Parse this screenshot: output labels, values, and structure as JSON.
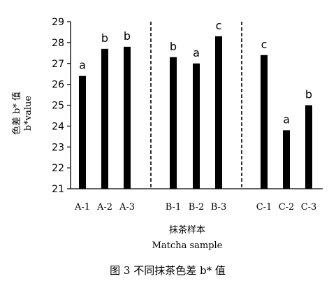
{
  "chart_data": {
    "type": "bar",
    "categories": [
      "A-1",
      "A-2",
      "A-3",
      "B-1",
      "B-2",
      "B-3",
      "C-1",
      "C-2",
      "C-3"
    ],
    "series": [
      {
        "values": [
          26.4,
          27.7,
          27.8,
          27.3,
          27.0,
          28.3,
          27.4,
          23.8,
          25.0
        ],
        "letters": [
          "a",
          "b",
          "b",
          "b",
          "a",
          "c",
          "c",
          "a",
          "b"
        ]
      }
    ],
    "ylabel_cn": "色差 b* 值",
    "ylabel_en": "b*value",
    "xlabel_cn": "抹茶样本",
    "xlabel_en": "Matcha sample",
    "ylim": [
      21,
      29
    ],
    "yticks": [
      21,
      22,
      23,
      24,
      25,
      26,
      27,
      28,
      29
    ],
    "group_separators": "dashed lines between groups A, B and C",
    "bar_color": "#000000"
  },
  "caption": "图 3  不同抹茶色差 b* 值"
}
